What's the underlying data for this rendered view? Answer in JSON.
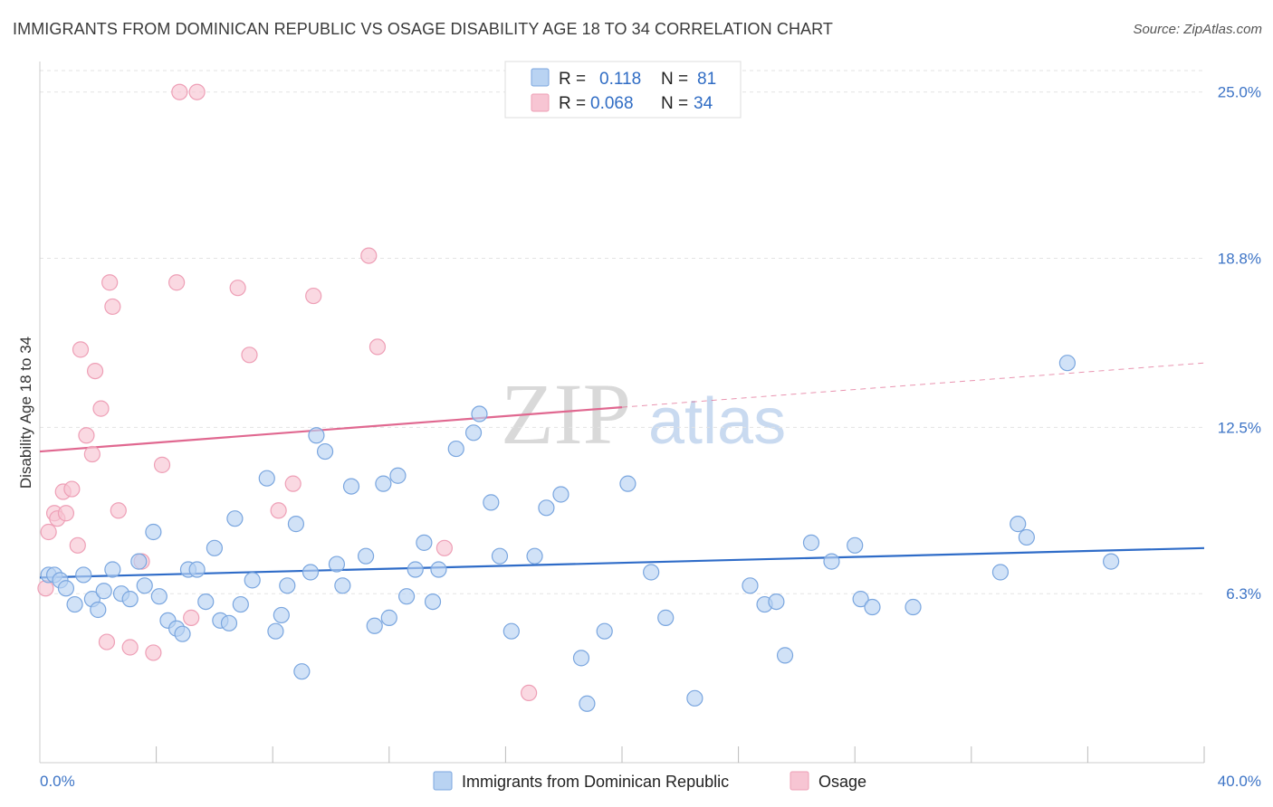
{
  "header": {
    "title": "IMMIGRANTS FROM DOMINICAN REPUBLIC VS OSAGE DISABILITY AGE 18 TO 34 CORRELATION CHART",
    "source": "Source: ZipAtlas.com"
  },
  "watermark": {
    "zip": "ZIP",
    "atlas": "atlas"
  },
  "colors": {
    "blue_fill": "#b9d3f2",
    "blue_stroke": "#7aa6df",
    "blue_line": "#2f6cc8",
    "pink_fill": "#f7c5d3",
    "pink_stroke": "#ee9fb6",
    "pink_line": "#e06890",
    "grid": "#e3e3e3",
    "tick_text": "#3d74c6"
  },
  "legend": {
    "rows": [
      {
        "r_label": "R =",
        "r_value": "0.118",
        "n_label": "N =",
        "n_value": "81"
      },
      {
        "r_label": "R =",
        "r_value": "0.068",
        "n_label": "N =",
        "n_value": "34"
      }
    ]
  },
  "chart_data": {
    "type": "scatter",
    "title": "IMMIGRANTS FROM DOMINICAN REPUBLIC VS OSAGE DISABILITY AGE 18 TO 34 CORRELATION CHART",
    "xlabel": "",
    "ylabel": "Disability Age 18 to 34",
    "xlim": [
      0,
      40
    ],
    "ylim": [
      0,
      25.8
    ],
    "x_tick_labels": [
      "0.0%",
      "40.0%"
    ],
    "y_ticks": [
      {
        "value": 6.3,
        "label": "6.3%"
      },
      {
        "value": 12.5,
        "label": "12.5%"
      },
      {
        "value": 18.8,
        "label": "18.8%"
      },
      {
        "value": 25.0,
        "label": "25.0%"
      }
    ],
    "grid": true,
    "legend_position": "top-center",
    "series": [
      {
        "name": "Immigrants from Dominican Republic",
        "color": "#b9d3f2",
        "trend": {
          "x": [
            0,
            40
          ],
          "y": [
            6.9,
            8.0
          ],
          "dashed_from": null
        },
        "points": [
          [
            0.3,
            7.0
          ],
          [
            0.5,
            7.0
          ],
          [
            0.7,
            6.8
          ],
          [
            0.9,
            6.5
          ],
          [
            1.2,
            5.9
          ],
          [
            1.5,
            7.0
          ],
          [
            1.8,
            6.1
          ],
          [
            2.0,
            5.7
          ],
          [
            2.2,
            6.4
          ],
          [
            2.5,
            7.2
          ],
          [
            2.8,
            6.3
          ],
          [
            3.1,
            6.1
          ],
          [
            3.4,
            7.5
          ],
          [
            3.6,
            6.6
          ],
          [
            3.9,
            8.6
          ],
          [
            4.1,
            6.2
          ],
          [
            4.4,
            5.3
          ],
          [
            4.7,
            5.0
          ],
          [
            4.9,
            4.8
          ],
          [
            5.1,
            7.2
          ],
          [
            5.4,
            7.2
          ],
          [
            5.7,
            6.0
          ],
          [
            6.0,
            8.0
          ],
          [
            6.2,
            5.3
          ],
          [
            6.5,
            5.2
          ],
          [
            6.7,
            9.1
          ],
          [
            6.9,
            5.9
          ],
          [
            7.3,
            6.8
          ],
          [
            7.8,
            10.6
          ],
          [
            8.1,
            4.9
          ],
          [
            8.3,
            5.5
          ],
          [
            8.5,
            6.6
          ],
          [
            8.8,
            8.9
          ],
          [
            9.0,
            3.4
          ],
          [
            9.3,
            7.1
          ],
          [
            9.5,
            12.2
          ],
          [
            9.8,
            11.6
          ],
          [
            10.2,
            7.4
          ],
          [
            10.4,
            6.6
          ],
          [
            10.7,
            10.3
          ],
          [
            11.2,
            7.7
          ],
          [
            11.5,
            5.1
          ],
          [
            11.8,
            10.4
          ],
          [
            12.0,
            5.4
          ],
          [
            12.3,
            10.7
          ],
          [
            12.6,
            6.2
          ],
          [
            12.9,
            7.2
          ],
          [
            13.2,
            8.2
          ],
          [
            13.5,
            6.0
          ],
          [
            13.7,
            7.2
          ],
          [
            14.3,
            11.7
          ],
          [
            14.9,
            12.3
          ],
          [
            15.1,
            13.0
          ],
          [
            15.5,
            9.7
          ],
          [
            15.8,
            7.7
          ],
          [
            16.2,
            4.9
          ],
          [
            17.0,
            7.7
          ],
          [
            17.4,
            9.5
          ],
          [
            17.9,
            10.0
          ],
          [
            18.6,
            3.9
          ],
          [
            18.8,
            2.2
          ],
          [
            19.4,
            4.9
          ],
          [
            20.2,
            10.4
          ],
          [
            21.0,
            7.1
          ],
          [
            21.5,
            5.4
          ],
          [
            22.5,
            2.4
          ],
          [
            24.4,
            6.6
          ],
          [
            24.9,
            5.9
          ],
          [
            25.3,
            6.0
          ],
          [
            25.6,
            4.0
          ],
          [
            26.5,
            8.2
          ],
          [
            27.2,
            7.5
          ],
          [
            28.0,
            8.1
          ],
          [
            28.2,
            6.1
          ],
          [
            28.6,
            5.8
          ],
          [
            30.0,
            5.8
          ],
          [
            33.0,
            7.1
          ],
          [
            33.6,
            8.9
          ],
          [
            33.9,
            8.4
          ],
          [
            35.3,
            14.9
          ],
          [
            36.8,
            7.5
          ]
        ]
      },
      {
        "name": "Osage",
        "color": "#f7c5d3",
        "trend": {
          "x": [
            0,
            40
          ],
          "y": [
            11.6,
            14.9
          ],
          "dashed_from": 20
        },
        "points": [
          [
            0.2,
            6.5
          ],
          [
            0.3,
            8.6
          ],
          [
            0.5,
            9.3
          ],
          [
            0.6,
            9.1
          ],
          [
            0.8,
            10.1
          ],
          [
            0.9,
            9.3
          ],
          [
            1.1,
            10.2
          ],
          [
            1.3,
            8.1
          ],
          [
            1.4,
            15.4
          ],
          [
            1.6,
            12.2
          ],
          [
            1.8,
            11.5
          ],
          [
            1.9,
            14.6
          ],
          [
            2.1,
            13.2
          ],
          [
            2.3,
            4.5
          ],
          [
            2.4,
            17.9
          ],
          [
            2.5,
            17.0
          ],
          [
            2.7,
            9.4
          ],
          [
            3.1,
            4.3
          ],
          [
            3.5,
            7.5
          ],
          [
            3.9,
            4.1
          ],
          [
            4.2,
            11.1
          ],
          [
            4.7,
            17.9
          ],
          [
            4.8,
            25.0
          ],
          [
            5.2,
            5.4
          ],
          [
            5.4,
            25.0
          ],
          [
            6.8,
            17.7
          ],
          [
            7.2,
            15.2
          ],
          [
            8.2,
            9.4
          ],
          [
            8.7,
            10.4
          ],
          [
            9.4,
            17.4
          ],
          [
            11.3,
            18.9
          ],
          [
            11.6,
            15.5
          ],
          [
            13.9,
            8.0
          ],
          [
            16.8,
            2.6
          ]
        ]
      }
    ]
  }
}
